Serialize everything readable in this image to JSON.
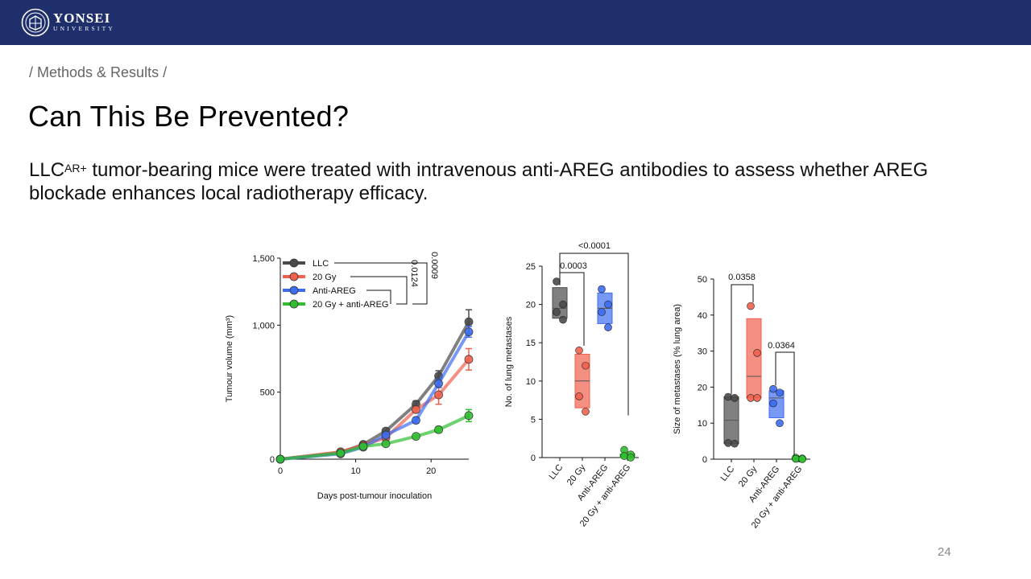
{
  "header": {
    "logo_name": "YONSEI",
    "logo_sub": "UNIVERSITY"
  },
  "breadcrumb": "/ Methods & Results /",
  "title": "Can This Be Prevented?",
  "body": {
    "p1": "LLC",
    "sup": "AR+",
    "p2": " tumor-bearing mice were treated with intravenous anti-AREG antibodies to assess whether AREG blockade enhances local radiotherapy efficacy."
  },
  "page_number": "24",
  "colors": {
    "LLC": "#4a4a4a",
    "20 Gy": "#f0604d",
    "Anti-AREG": "#3d6cf0",
    "20 Gy + anti-AREG": "#2fbf2f",
    "header": "#1f2f6b"
  },
  "chart_data": [
    {
      "type": "line",
      "xlabel": "Days post-tumour inoculation",
      "ylabel": "Tumour volume (mm³)",
      "xlim": [
        0,
        25
      ],
      "ylim": [
        0,
        1500
      ],
      "xticks": [
        0,
        10,
        20
      ],
      "yticks": [
        {
          "v": 0,
          "label": "0"
        },
        {
          "v": 500,
          "label": "500"
        },
        {
          "v": 1000,
          "label": "1,000"
        },
        {
          "v": 1500,
          "label": "1,500"
        }
      ],
      "legend": "top-left",
      "x": [
        0,
        8,
        11,
        14,
        18,
        21,
        25
      ],
      "series": [
        {
          "name": "LLC",
          "values": [
            0,
            50,
            110,
            210,
            410,
            620,
            1025
          ],
          "errors": [
            0,
            0,
            0,
            0,
            25,
            40,
            90
          ]
        },
        {
          "name": "20 Gy",
          "values": [
            0,
            55,
            105,
            160,
            370,
            480,
            745
          ],
          "errors": [
            0,
            0,
            0,
            0,
            20,
            70,
            80
          ]
        },
        {
          "name": "Anti-AREG",
          "values": [
            0,
            40,
            90,
            180,
            290,
            565,
            950
          ],
          "errors": [
            0,
            0,
            0,
            0,
            20,
            30,
            40
          ]
        },
        {
          "name": "20 Gy + anti-AREG",
          "values": [
            0,
            45,
            95,
            115,
            170,
            220,
            325
          ],
          "errors": [
            0,
            0,
            0,
            0,
            0,
            20,
            45
          ]
        }
      ],
      "annotations": [
        "0.0009",
        "0.0124"
      ]
    },
    {
      "type": "box",
      "ylabel": "No. of lung metastases",
      "ylim": [
        0,
        25
      ],
      "yticks": [
        0,
        5,
        10,
        15,
        20,
        25
      ],
      "categories": [
        "LLC",
        "20 Gy",
        "Anti-AREG",
        "20 Gy + anti-AREG"
      ],
      "boxes": [
        {
          "q1": 18.2,
          "median": 19.5,
          "q3": 22.2,
          "points": [
            23,
            20,
            19,
            18
          ]
        },
        {
          "q1": 6.5,
          "median": 10,
          "q3": 13.5,
          "points": [
            14,
            12,
            8,
            6
          ]
        },
        {
          "q1": 17.5,
          "median": 19.5,
          "q3": 21.5,
          "points": [
            22,
            20,
            19,
            17
          ]
        },
        {
          "q1": 0,
          "median": 0.2,
          "q3": 0.5,
          "points": [
            1,
            0.4,
            0.2,
            0
          ]
        }
      ],
      "annotations": [
        "<0.0001",
        "0.0003"
      ]
    },
    {
      "type": "box",
      "ylabel": "Size of metastases (% lung area)",
      "ylim": [
        0,
        50
      ],
      "yticks": [
        0,
        10,
        20,
        30,
        40,
        50
      ],
      "categories": [
        "LLC",
        "20 Gy",
        "Anti-AREG",
        "20 Gy + anti-AREG"
      ],
      "boxes": [
        {
          "q1": 4.3,
          "median": 10.8,
          "q3": 17.3,
          "points": [
            17.3,
            17,
            4.5,
            4.3
          ]
        },
        {
          "q1": 17,
          "median": 23,
          "q3": 39,
          "points": [
            42.5,
            29.5,
            17,
            17
          ]
        },
        {
          "q1": 11.5,
          "median": 17,
          "q3": 19,
          "points": [
            19.5,
            18.5,
            15.5,
            10
          ]
        },
        {
          "q1": 0,
          "median": 0.1,
          "q3": 0.3,
          "points": [
            0.4,
            0.2,
            0.1,
            0
          ]
        }
      ],
      "annotations": [
        "0.0358",
        "0.0364"
      ]
    }
  ]
}
